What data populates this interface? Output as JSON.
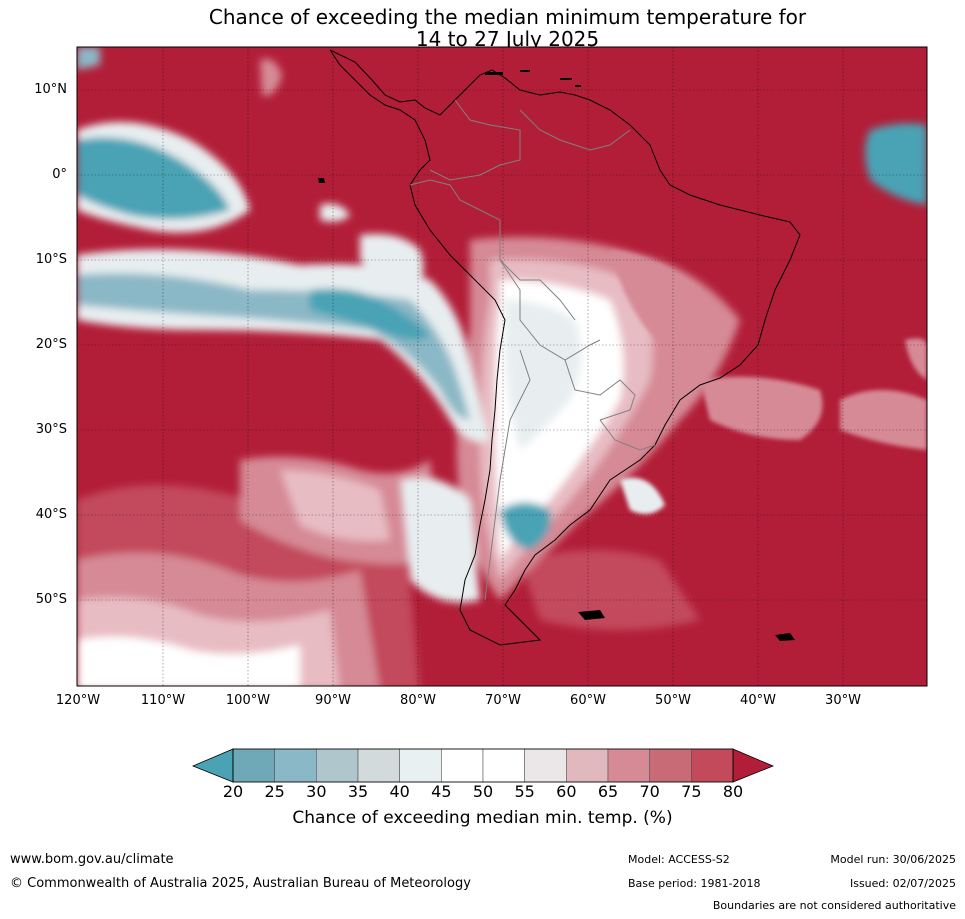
{
  "title": {
    "line1": "Chance of exceeding the median minimum temperature for",
    "line2": "14 to 27 July 2025"
  },
  "map": {
    "latitude_labels": [
      "10°N",
      "0°",
      "10°S",
      "20°S",
      "30°S",
      "40°S",
      "50°S"
    ],
    "longitude_labels": [
      "120°W",
      "110°W",
      "100°W",
      "90°W",
      "80°W",
      "70°W",
      "60°W",
      "50°W",
      "40°W",
      "30°W"
    ],
    "colors": {
      "very_high": "#b21e38",
      "high": "#c34a5b",
      "mid_high": "#d68a96",
      "low_high": "#e8bcc3",
      "neutral": "#ffffff",
      "light_grey": "#e8eef0",
      "low": "#4aa3b5",
      "mid_low": "#8bb8c6",
      "land_outline": "#000000",
      "border": "#808080"
    }
  },
  "colorbar": {
    "ticks": [
      "20",
      "25",
      "30",
      "35",
      "40",
      "45",
      "50",
      "55",
      "60",
      "65",
      "70",
      "75",
      "80"
    ],
    "colors": [
      "#4aa3b5",
      "#6fa9b8",
      "#8bb8c6",
      "#aec6cc",
      "#d2dadb",
      "#e9f0f2",
      "#ffffff",
      "#ffffff",
      "#ebe7e8",
      "#e2b8bf",
      "#d68a96",
      "#c96b77",
      "#c34a5b",
      "#b21e38"
    ],
    "title": "Chance of exceeding median min. temp. (%)"
  },
  "footer": {
    "url": "www.bom.gov.au/climate",
    "copyright": "© Commonwealth of Australia 2025, Australian Bureau of Meteorology",
    "model": "Model: ACCESS-S2",
    "base_period": "Base period: 1981-2018",
    "model_run": "Model run: 30/06/2025",
    "issued": "Issued: 02/07/2025",
    "boundaries_note": "Boundaries are not considered authoritative"
  }
}
